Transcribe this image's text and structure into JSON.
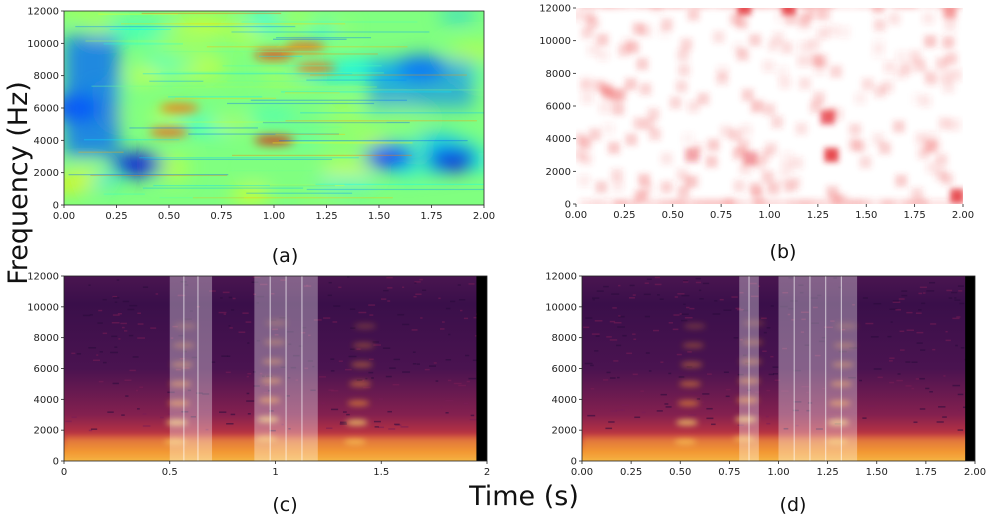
{
  "figure": {
    "ylabel": "Frequency (Hz)",
    "xlabel": "Time (s)"
  },
  "chart_data": [
    {
      "id": "a",
      "caption": "(a)",
      "type": "heatmap",
      "colormap": "jet",
      "title": "",
      "xlabel": "",
      "ylabel": "",
      "xlim": [
        0,
        2.0
      ],
      "ylim": [
        0,
        12000
      ],
      "xticks": [
        "0.00",
        "0.25",
        "0.50",
        "0.75",
        "1.00",
        "1.25",
        "1.50",
        "1.75",
        "2.00"
      ],
      "yticks": [
        "0",
        "2000",
        "4000",
        "6000",
        "8000",
        "10000",
        "12000"
      ],
      "hotspots": [
        {
          "t": 0.5,
          "f": 4500,
          "v": 0.8
        },
        {
          "t": 0.55,
          "f": 6000,
          "v": 0.78
        },
        {
          "t": 1.0,
          "f": 4000,
          "v": 0.9
        },
        {
          "t": 1.0,
          "f": 9300,
          "v": 0.85
        },
        {
          "t": 1.15,
          "f": 9800,
          "v": 0.8
        },
        {
          "t": 1.2,
          "f": 8500,
          "v": 0.78
        }
      ],
      "coldspots": [
        {
          "t": 0.35,
          "f": 2500,
          "v": 0.1
        },
        {
          "t": 0.05,
          "f": 6000,
          "v": 0.15
        },
        {
          "t": 1.55,
          "f": 3000,
          "v": 0.15
        },
        {
          "t": 1.85,
          "f": 2800,
          "v": 0.1
        },
        {
          "t": 1.7,
          "f": 8500,
          "v": 0.2
        }
      ]
    },
    {
      "id": "b",
      "caption": "(b)",
      "type": "heatmap",
      "colormap": "white-red",
      "title": "",
      "xlabel": "",
      "ylabel": "",
      "xlim": [
        0,
        2.0
      ],
      "ylim": [
        0,
        12000
      ],
      "xticks": [
        "0.00",
        "0.25",
        "0.50",
        "0.75",
        "1.00",
        "1.25",
        "1.50",
        "1.75",
        "2.00"
      ],
      "yticks": [
        "0",
        "2000",
        "4000",
        "6000",
        "8000",
        "10000",
        "12000"
      ],
      "hotspots": [
        {
          "t": 0.87,
          "f": 12000,
          "v": 0.9
        },
        {
          "t": 1.1,
          "f": 12000,
          "v": 0.9
        },
        {
          "t": 1.32,
          "f": 3000,
          "v": 0.95
        },
        {
          "t": 1.3,
          "f": 5300,
          "v": 0.8
        },
        {
          "t": 1.97,
          "f": 500,
          "v": 0.9
        },
        {
          "t": 0.9,
          "f": 2800,
          "v": 0.5
        },
        {
          "t": 0.6,
          "f": 3000,
          "v": 0.45
        }
      ]
    },
    {
      "id": "c",
      "caption": "(c)",
      "type": "heatmap",
      "colormap": "inferno",
      "title": "",
      "xlabel": "",
      "ylabel": "",
      "xlim": [
        0,
        2
      ],
      "ylim": [
        0,
        12000
      ],
      "xticks": [
        "0",
        "0.5",
        "1",
        "1.5",
        "2"
      ],
      "yticks": [
        "0",
        "2000",
        "4000",
        "6000",
        "8000",
        "10000",
        "12000"
      ],
      "highlight_regions": [
        [
          0.5,
          0.7
        ],
        [
          0.9,
          1.2
        ]
      ],
      "masked_tail_start": 1.95
    },
    {
      "id": "d",
      "caption": "(d)",
      "type": "heatmap",
      "colormap": "inferno",
      "title": "",
      "xlabel": "",
      "ylabel": "",
      "xlim": [
        0,
        2.0
      ],
      "ylim": [
        0,
        12000
      ],
      "xticks": [
        "0.00",
        "0.25",
        "0.50",
        "0.75",
        "1.00",
        "1.25",
        "1.50",
        "1.75",
        "2.00"
      ],
      "yticks": [
        "0",
        "2000",
        "4000",
        "6000",
        "8000",
        "10000",
        "12000"
      ],
      "highlight_regions": [
        [
          0.8,
          0.9
        ],
        [
          1.0,
          1.4
        ]
      ],
      "masked_tail_start": 1.95
    }
  ]
}
